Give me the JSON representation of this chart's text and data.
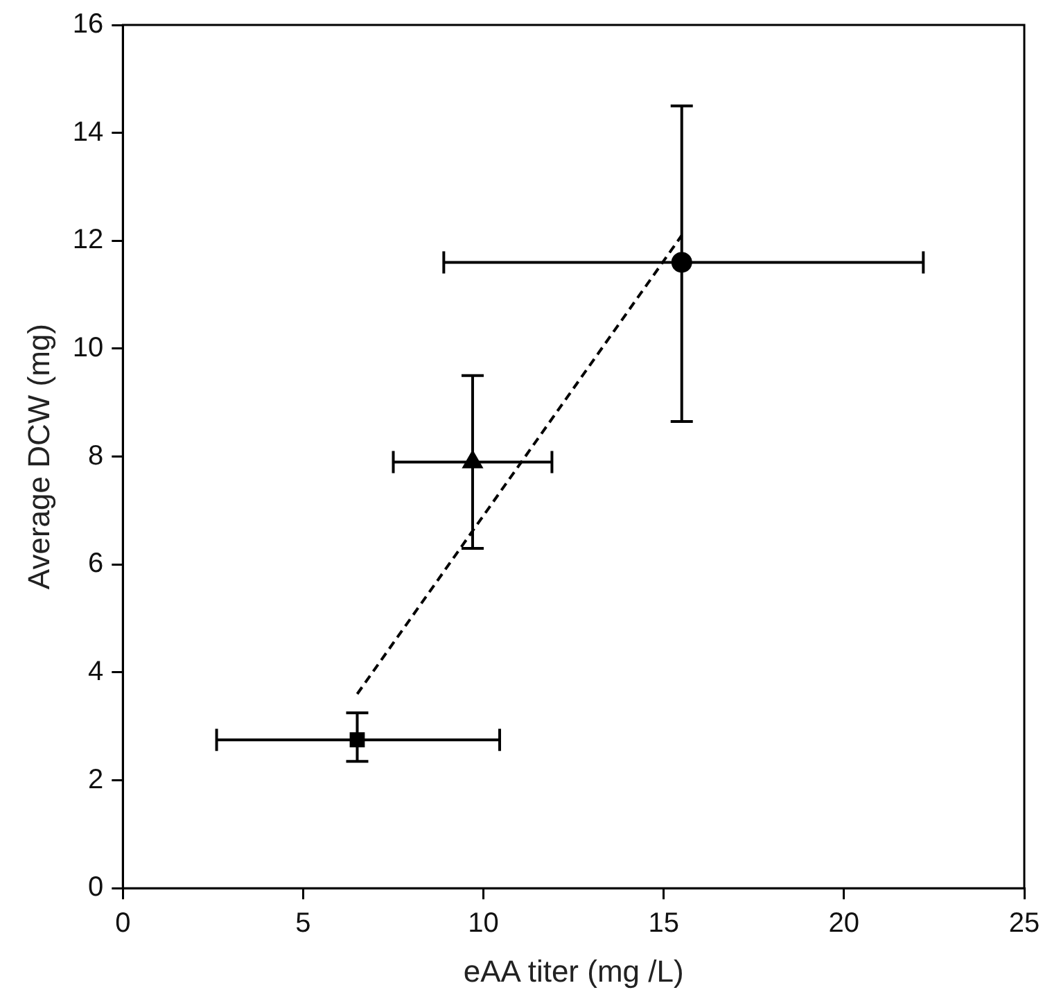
{
  "chart_data": {
    "type": "scatter",
    "xlabel": "eAA titer (mg /L)",
    "ylabel": "Average DCW (mg)",
    "xlim": [
      0,
      25
    ],
    "xticks": [
      0,
      5,
      10,
      15,
      20,
      25
    ],
    "ylim": [
      0,
      16
    ],
    "yticks": [
      0,
      2,
      4,
      6,
      8,
      10,
      12,
      14,
      16
    ],
    "grid": false,
    "legend": false,
    "series": [
      {
        "marker": "square",
        "color": "#000000",
        "x": [
          6.5
        ],
        "values": [
          2.75
        ],
        "errors": [
          [
            2.35,
            3.25
          ]
        ],
        "xerrors": [
          [
            2.6,
            10.45
          ]
        ]
      },
      {
        "marker": "triangle",
        "color": "#000000",
        "x": [
          9.7
        ],
        "values": [
          7.9
        ],
        "errors": [
          [
            6.3,
            9.5
          ]
        ],
        "xerrors": [
          [
            7.5,
            11.9
          ]
        ]
      },
      {
        "marker": "circle",
        "color": "#000000",
        "x": [
          15.5
        ],
        "values": [
          11.6
        ],
        "errors": [
          [
            8.65,
            14.5
          ]
        ],
        "xerrors": [
          [
            8.9,
            22.2
          ]
        ]
      },
      {
        "type": "line",
        "marker": "none",
        "line_style": "dashed",
        "color": "#000000",
        "x": [
          6.5,
          15.5
        ],
        "values": [
          3.6,
          12.1
        ]
      }
    ]
  }
}
